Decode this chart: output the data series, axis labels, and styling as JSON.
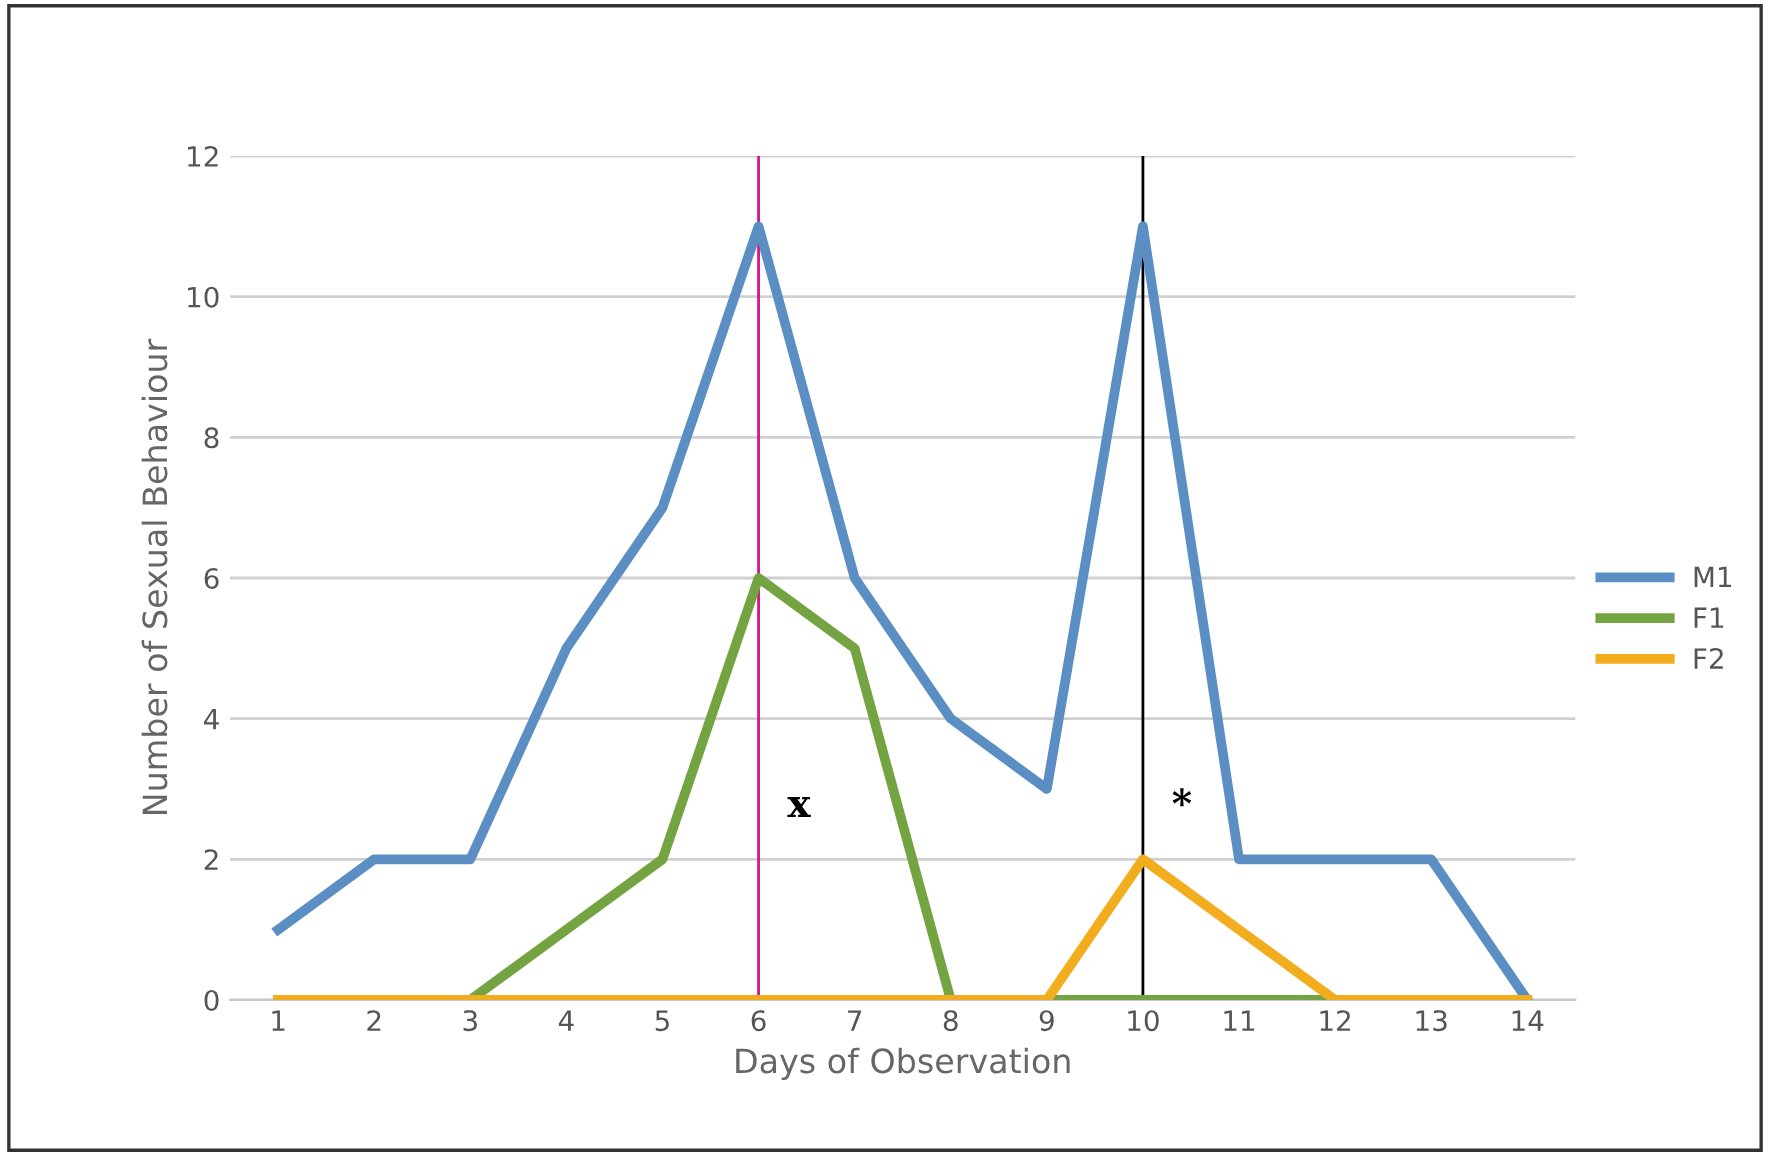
{
  "chart_data": {
    "type": "line",
    "xlabel": "Days of Observation",
    "ylabel": "Number of Sexual Behaviour",
    "x": [
      1,
      2,
      3,
      4,
      5,
      6,
      7,
      8,
      9,
      10,
      11,
      12,
      13,
      14
    ],
    "xlim": [
      0.5,
      14.5
    ],
    "xticks": [
      1,
      2,
      3,
      4,
      5,
      6,
      7,
      8,
      9,
      10,
      11,
      12,
      13,
      14
    ],
    "ylim": [
      0,
      12
    ],
    "yticks": [
      0,
      2,
      4,
      6,
      8,
      10,
      12
    ],
    "grid": "y",
    "legend": "right",
    "marker": "none",
    "line_style": "solid",
    "series": [
      {
        "name": "M1",
        "color": "#5b8fc4",
        "values": [
          1,
          2,
          2,
          5,
          7,
          11,
          6,
          4,
          3,
          11,
          2,
          2,
          2,
          0
        ]
      },
      {
        "name": "F1",
        "color": "#74a342",
        "values": [
          0,
          0,
          0,
          1,
          2,
          6,
          5,
          0,
          0,
          0,
          0,
          0,
          0,
          0
        ]
      },
      {
        "name": "F2",
        "color": "#f2ad1f",
        "values": [
          0,
          0,
          0,
          0,
          0,
          0,
          0,
          0,
          0,
          2,
          1,
          0,
          0,
          0
        ]
      }
    ],
    "ref_lines": [
      {
        "axis": "x",
        "value": 6,
        "label": "x",
        "color": "#d4148c"
      },
      {
        "axis": "x",
        "value": 10,
        "label": "*",
        "color": "#000000"
      }
    ]
  }
}
